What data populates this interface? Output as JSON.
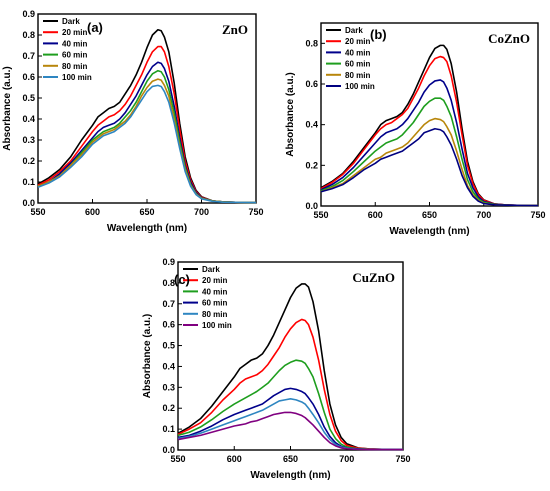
{
  "chart_data": [
    {
      "type": "line",
      "panel_label": "(a)",
      "material": "ZnO",
      "xlabel": "Wavelength (nm)",
      "ylabel": "Absorbance (a.u.)",
      "xlim": [
        550,
        750
      ],
      "ylim": [
        0,
        0.9
      ],
      "xticks": [
        550,
        600,
        650,
        700,
        750
      ],
      "xtick_labels": [
        "550",
        "600",
        "650",
        "700",
        "750"
      ],
      "yticks": [
        0,
        0.1,
        0.2,
        0.3,
        0.4,
        0.5,
        0.6,
        0.7,
        0.8,
        0.9
      ],
      "ytick_labels": [
        "0.0",
        "0.1",
        "0.2",
        "0.3",
        "0.4",
        "0.5",
        "0.6",
        "0.7",
        "0.8",
        "0.9"
      ],
      "legend_position": "top-left",
      "x": [
        550,
        560,
        570,
        580,
        590,
        600,
        605,
        610,
        615,
        620,
        625,
        630,
        635,
        640,
        645,
        650,
        655,
        660,
        663,
        666,
        670,
        675,
        680,
        685,
        690,
        695,
        700,
        710,
        720,
        735,
        750
      ],
      "series": [
        {
          "name": "Dark",
          "color": "#000000",
          "values": [
            0.09,
            0.12,
            0.16,
            0.22,
            0.3,
            0.37,
            0.41,
            0.43,
            0.45,
            0.46,
            0.48,
            0.52,
            0.56,
            0.61,
            0.67,
            0.74,
            0.8,
            0.825,
            0.82,
            0.79,
            0.72,
            0.57,
            0.38,
            0.22,
            0.12,
            0.06,
            0.03,
            0.01,
            0.005,
            0.003,
            0.002
          ]
        },
        {
          "name": "20 min",
          "color": "#ff0000",
          "values": [
            0.085,
            0.11,
            0.15,
            0.2,
            0.27,
            0.34,
            0.37,
            0.39,
            0.41,
            0.42,
            0.44,
            0.47,
            0.51,
            0.56,
            0.61,
            0.67,
            0.72,
            0.745,
            0.745,
            0.72,
            0.65,
            0.52,
            0.35,
            0.2,
            0.11,
            0.055,
            0.028,
            0.01,
            0.005,
            0.003,
            0.002
          ]
        },
        {
          "name": "40 min",
          "color": "#00008b",
          "values": [
            0.08,
            0.1,
            0.14,
            0.19,
            0.25,
            0.31,
            0.34,
            0.36,
            0.37,
            0.38,
            0.4,
            0.43,
            0.47,
            0.51,
            0.56,
            0.61,
            0.65,
            0.67,
            0.665,
            0.64,
            0.58,
            0.46,
            0.31,
            0.18,
            0.1,
            0.05,
            0.025,
            0.01,
            0.005,
            0.003,
            0.002
          ]
        },
        {
          "name": "60 min",
          "color": "#1e9e1e",
          "values": [
            0.08,
            0.1,
            0.13,
            0.18,
            0.24,
            0.3,
            0.32,
            0.34,
            0.35,
            0.36,
            0.38,
            0.41,
            0.44,
            0.48,
            0.53,
            0.58,
            0.615,
            0.63,
            0.625,
            0.6,
            0.54,
            0.43,
            0.29,
            0.17,
            0.09,
            0.045,
            0.023,
            0.01,
            0.005,
            0.003,
            0.002
          ]
        },
        {
          "name": "80 min",
          "color": "#b8860b",
          "values": [
            0.08,
            0.1,
            0.13,
            0.18,
            0.23,
            0.29,
            0.31,
            0.33,
            0.34,
            0.35,
            0.37,
            0.39,
            0.42,
            0.46,
            0.51,
            0.55,
            0.58,
            0.59,
            0.585,
            0.56,
            0.51,
            0.4,
            0.27,
            0.16,
            0.085,
            0.043,
            0.022,
            0.009,
            0.005,
            0.003,
            0.002
          ]
        },
        {
          "name": "100 min",
          "color": "#2e86c1",
          "values": [
            0.075,
            0.095,
            0.125,
            0.17,
            0.22,
            0.28,
            0.3,
            0.32,
            0.33,
            0.34,
            0.36,
            0.38,
            0.41,
            0.45,
            0.49,
            0.53,
            0.555,
            0.56,
            0.555,
            0.53,
            0.48,
            0.38,
            0.26,
            0.15,
            0.08,
            0.04,
            0.02,
            0.008,
            0.004,
            0.003,
            0.002
          ]
        }
      ]
    },
    {
      "type": "line",
      "panel_label": "(b)",
      "material": "CoZnO",
      "xlabel": "Wavelength (nm)",
      "ylabel": "Absorbance (a.u.)",
      "xlim": [
        550,
        750
      ],
      "ylim": [
        0,
        0.9
      ],
      "xticks": [
        550,
        600,
        650,
        700,
        750
      ],
      "xtick_labels": [
        "550",
        "600",
        "650",
        "700",
        "750"
      ],
      "yticks": [
        0,
        0.2,
        0.4,
        0.6,
        0.8
      ],
      "ytick_labels": [
        "0.0",
        "0.2",
        "0.4",
        "0.6",
        "0.8"
      ],
      "legend_position": "top-left",
      "x": [
        550,
        560,
        570,
        580,
        590,
        600,
        605,
        610,
        615,
        620,
        625,
        630,
        635,
        640,
        645,
        650,
        655,
        660,
        663,
        666,
        670,
        675,
        680,
        685,
        690,
        695,
        700,
        710,
        720,
        735,
        750
      ],
      "series": [
        {
          "name": "Dark",
          "color": "#000000",
          "values": [
            0.09,
            0.12,
            0.16,
            0.22,
            0.29,
            0.36,
            0.4,
            0.42,
            0.43,
            0.44,
            0.46,
            0.5,
            0.55,
            0.61,
            0.67,
            0.73,
            0.775,
            0.79,
            0.79,
            0.77,
            0.7,
            0.56,
            0.38,
            0.22,
            0.12,
            0.06,
            0.03,
            0.01,
            0.005,
            0.003,
            0.002
          ]
        },
        {
          "name": "20 min",
          "color": "#ff0000",
          "values": [
            0.085,
            0.115,
            0.155,
            0.21,
            0.28,
            0.35,
            0.38,
            0.4,
            0.41,
            0.43,
            0.45,
            0.48,
            0.53,
            0.58,
            0.64,
            0.69,
            0.725,
            0.735,
            0.73,
            0.71,
            0.64,
            0.51,
            0.35,
            0.2,
            0.11,
            0.055,
            0.028,
            0.01,
            0.005,
            0.003,
            0.002
          ]
        },
        {
          "name": "40 min",
          "color": "#00008b",
          "values": [
            0.08,
            0.105,
            0.14,
            0.19,
            0.25,
            0.31,
            0.34,
            0.36,
            0.37,
            0.38,
            0.4,
            0.43,
            0.47,
            0.51,
            0.56,
            0.595,
            0.615,
            0.62,
            0.61,
            0.58,
            0.52,
            0.41,
            0.28,
            0.16,
            0.09,
            0.045,
            0.022,
            0.009,
            0.005,
            0.003,
            0.002
          ]
        },
        {
          "name": "60 min",
          "color": "#1e9e1e",
          "values": [
            0.075,
            0.095,
            0.125,
            0.17,
            0.22,
            0.27,
            0.29,
            0.31,
            0.32,
            0.33,
            0.35,
            0.38,
            0.41,
            0.45,
            0.49,
            0.515,
            0.53,
            0.53,
            0.52,
            0.49,
            0.44,
            0.34,
            0.23,
            0.13,
            0.07,
            0.035,
            0.018,
            0.008,
            0.004,
            0.003,
            0.002
          ]
        },
        {
          "name": "80 min",
          "color": "#b8860b",
          "values": [
            0.07,
            0.09,
            0.11,
            0.15,
            0.19,
            0.23,
            0.24,
            0.26,
            0.27,
            0.28,
            0.29,
            0.31,
            0.34,
            0.37,
            0.4,
            0.42,
            0.43,
            0.425,
            0.415,
            0.39,
            0.35,
            0.27,
            0.18,
            0.1,
            0.055,
            0.028,
            0.014,
            0.006,
            0.004,
            0.003,
            0.002
          ]
        },
        {
          "name": "100 min",
          "color": "#000080",
          "values": [
            0.07,
            0.085,
            0.105,
            0.14,
            0.18,
            0.21,
            0.23,
            0.24,
            0.25,
            0.26,
            0.27,
            0.29,
            0.31,
            0.33,
            0.36,
            0.37,
            0.38,
            0.375,
            0.365,
            0.34,
            0.3,
            0.23,
            0.15,
            0.09,
            0.048,
            0.024,
            0.012,
            0.006,
            0.004,
            0.003,
            0.002
          ]
        }
      ]
    },
    {
      "type": "line",
      "panel_label": "(c)",
      "material": "CuZnO",
      "xlabel": "Wavelength (nm)",
      "ylabel": "Absorbance (a.u.)",
      "xlim": [
        550,
        750
      ],
      "ylim": [
        0,
        0.9
      ],
      "xticks": [
        550,
        600,
        650,
        700,
        750
      ],
      "xtick_labels": [
        "550",
        "600",
        "650",
        "700",
        "750"
      ],
      "yticks": [
        0,
        0.1,
        0.2,
        0.3,
        0.4,
        0.5,
        0.6,
        0.7,
        0.8,
        0.9
      ],
      "ytick_labels": [
        "0.0",
        "0.1",
        "0.2",
        "0.3",
        "0.4",
        "0.5",
        "0.6",
        "0.7",
        "0.8",
        "0.9"
      ],
      "legend_position": "top-left",
      "x": [
        550,
        560,
        570,
        580,
        590,
        600,
        605,
        610,
        615,
        620,
        625,
        630,
        635,
        640,
        645,
        650,
        655,
        660,
        663,
        666,
        670,
        675,
        680,
        685,
        690,
        695,
        700,
        710,
        720,
        735,
        750
      ],
      "series": [
        {
          "name": "Dark",
          "color": "#000000",
          "values": [
            0.08,
            0.11,
            0.15,
            0.21,
            0.28,
            0.35,
            0.39,
            0.41,
            0.43,
            0.44,
            0.46,
            0.5,
            0.55,
            0.61,
            0.67,
            0.73,
            0.775,
            0.795,
            0.795,
            0.78,
            0.71,
            0.57,
            0.38,
            0.22,
            0.12,
            0.06,
            0.03,
            0.01,
            0.005,
            0.003,
            0.002
          ]
        },
        {
          "name": "20 min",
          "color": "#ff0000",
          "values": [
            0.075,
            0.1,
            0.13,
            0.18,
            0.24,
            0.29,
            0.32,
            0.34,
            0.35,
            0.36,
            0.38,
            0.41,
            0.45,
            0.49,
            0.54,
            0.58,
            0.61,
            0.625,
            0.62,
            0.6,
            0.54,
            0.43,
            0.29,
            0.17,
            0.09,
            0.045,
            0.022,
            0.009,
            0.005,
            0.003,
            0.002
          ]
        },
        {
          "name": "40 min",
          "color": "#1e9e1e",
          "values": [
            0.07,
            0.085,
            0.11,
            0.145,
            0.185,
            0.22,
            0.235,
            0.25,
            0.265,
            0.28,
            0.3,
            0.32,
            0.35,
            0.38,
            0.405,
            0.42,
            0.43,
            0.425,
            0.415,
            0.39,
            0.35,
            0.27,
            0.18,
            0.1,
            0.055,
            0.028,
            0.014,
            0.006,
            0.004,
            0.003,
            0.002
          ]
        },
        {
          "name": "60 min",
          "color": "#00008b",
          "values": [
            0.06,
            0.07,
            0.09,
            0.115,
            0.145,
            0.17,
            0.18,
            0.19,
            0.2,
            0.21,
            0.22,
            0.24,
            0.26,
            0.275,
            0.29,
            0.295,
            0.29,
            0.28,
            0.27,
            0.25,
            0.22,
            0.17,
            0.11,
            0.065,
            0.035,
            0.018,
            0.009,
            0.005,
            0.003,
            0.003,
            0.002
          ]
        },
        {
          "name": "80 min",
          "color": "#2e86c1",
          "values": [
            0.055,
            0.065,
            0.08,
            0.1,
            0.12,
            0.14,
            0.15,
            0.16,
            0.17,
            0.18,
            0.19,
            0.205,
            0.22,
            0.235,
            0.24,
            0.245,
            0.24,
            0.23,
            0.22,
            0.2,
            0.17,
            0.13,
            0.085,
            0.05,
            0.027,
            0.014,
            0.008,
            0.004,
            0.003,
            0.002,
            0.002
          ]
        },
        {
          "name": "100 min",
          "color": "#800080",
          "values": [
            0.05,
            0.06,
            0.07,
            0.085,
            0.1,
            0.115,
            0.12,
            0.125,
            0.135,
            0.14,
            0.15,
            0.16,
            0.17,
            0.175,
            0.18,
            0.18,
            0.175,
            0.165,
            0.155,
            0.14,
            0.12,
            0.09,
            0.06,
            0.035,
            0.02,
            0.01,
            0.006,
            0.003,
            0.002,
            0.002,
            0.002
          ]
        }
      ]
    }
  ]
}
